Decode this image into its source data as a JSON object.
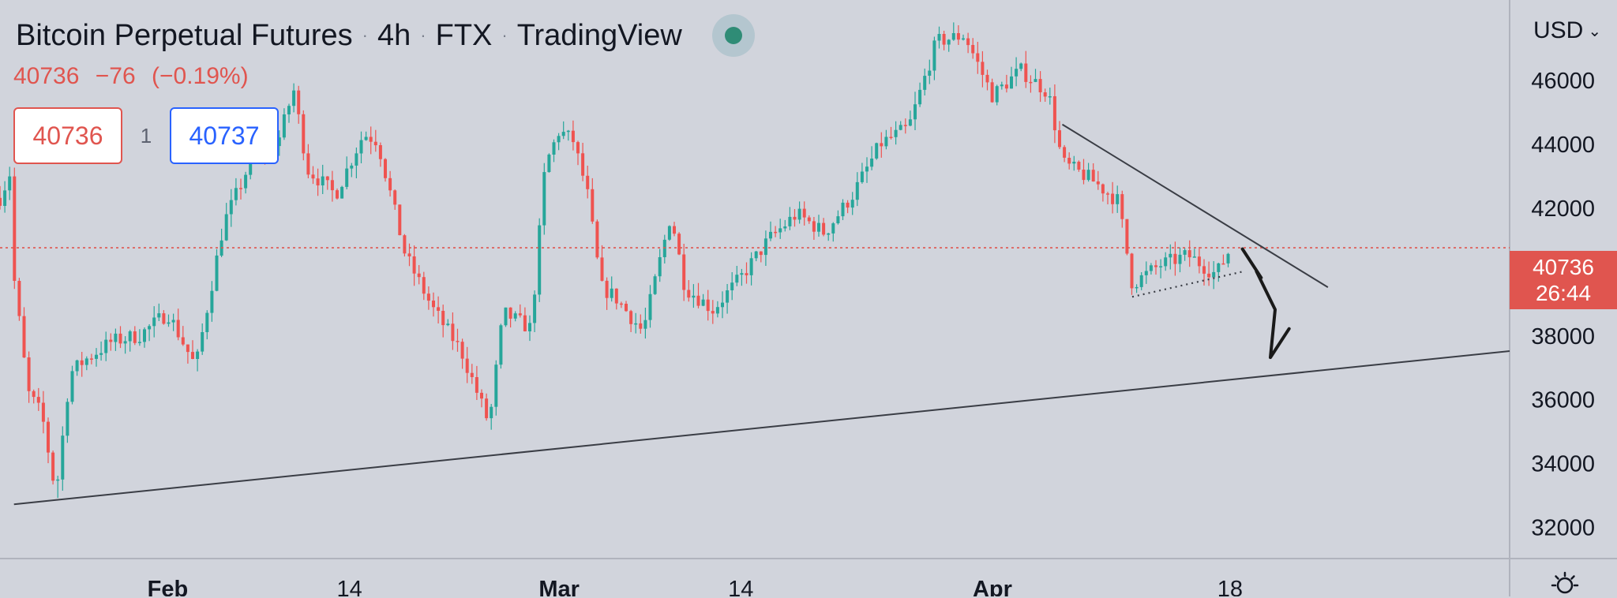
{
  "header": {
    "symbol": "Bitcoin Perpetual Futures",
    "interval": "4h",
    "exchange": "FTX",
    "source": "TradingView"
  },
  "quote": {
    "last": "40736",
    "change": "−76",
    "change_pct": "(−0.19%)",
    "sell": "40736",
    "spread": "1",
    "buy": "40737"
  },
  "currency": "USD",
  "price_label": {
    "price": "40736",
    "countdown": "26:44"
  },
  "colors": {
    "background": "#d1d4dc",
    "up": "#26a69a",
    "down": "#ef5350",
    "price_line": "#e0554f",
    "trendline": "#3a3d45",
    "drawing": "#1a1a1a"
  },
  "chart_data": {
    "type": "candlestick",
    "y_axis": {
      "ticks": [
        32000,
        34000,
        36000,
        38000,
        40000,
        42000,
        44000,
        46000
      ],
      "labels": [
        "32000",
        "34000",
        "36000",
        "38000",
        "",
        "42000",
        "44000",
        "46000"
      ],
      "range": [
        31000,
        48500
      ]
    },
    "x_axis": {
      "ticks": [
        "2022-02-01",
        "2022-02-14",
        "2022-03-01",
        "2022-03-14",
        "2022-04-01",
        "2022-04-18"
      ],
      "labels": [
        "Feb",
        "14",
        "Mar",
        "14",
        "Apr",
        "18"
      ],
      "bold": [
        true,
        false,
        true,
        false,
        true,
        false
      ],
      "range": [
        "2022-01-20",
        "2022-05-08"
      ]
    },
    "last_price": 40736,
    "path": [
      [
        "2022-01-20",
        42300
      ],
      [
        "2022-01-21",
        43400
      ],
      [
        "2022-01-21",
        39800
      ],
      [
        "2022-01-22",
        36200
      ],
      [
        "2022-01-23",
        35500
      ],
      [
        "2022-01-24",
        33000
      ],
      [
        "2022-01-25",
        36800
      ],
      [
        "2022-01-26",
        37200
      ],
      [
        "2022-01-28",
        37800
      ],
      [
        "2022-01-30",
        38000
      ],
      [
        "2022-02-01",
        38700
      ],
      [
        "2022-02-03",
        37000
      ],
      [
        "2022-02-05",
        41500
      ],
      [
        "2022-02-07",
        43500
      ],
      [
        "2022-02-09",
        44200
      ],
      [
        "2022-02-10",
        45700
      ],
      [
        "2022-02-11",
        43200
      ],
      [
        "2022-02-13",
        42400
      ],
      [
        "2022-02-15",
        44300
      ],
      [
        "2022-02-16",
        44100
      ],
      [
        "2022-02-18",
        40500
      ],
      [
        "2022-02-20",
        38800
      ],
      [
        "2022-02-22",
        37500
      ],
      [
        "2022-02-24",
        35200
      ],
      [
        "2022-02-25",
        38700
      ],
      [
        "2022-02-27",
        38200
      ],
      [
        "2022-02-28",
        43300
      ],
      [
        "2022-03-01",
        44400
      ],
      [
        "2022-03-02",
        44100
      ],
      [
        "2022-03-03",
        42500
      ],
      [
        "2022-03-04",
        39500
      ],
      [
        "2022-03-05",
        39200
      ],
      [
        "2022-03-07",
        38100
      ],
      [
        "2022-03-09",
        41800
      ],
      [
        "2022-03-10",
        39500
      ],
      [
        "2022-03-12",
        38800
      ],
      [
        "2022-03-14",
        39800
      ],
      [
        "2022-03-16",
        41000
      ],
      [
        "2022-03-18",
        41800
      ],
      [
        "2022-03-20",
        41200
      ],
      [
        "2022-03-22",
        42400
      ],
      [
        "2022-03-24",
        44000
      ],
      [
        "2022-03-26",
        44500
      ],
      [
        "2022-03-28",
        47200
      ],
      [
        "2022-03-30",
        47400
      ],
      [
        "2022-04-01",
        45500
      ],
      [
        "2022-04-03",
        46300
      ],
      [
        "2022-04-05",
        45600
      ],
      [
        "2022-04-06",
        43400
      ],
      [
        "2022-04-08",
        42900
      ],
      [
        "2022-04-10",
        42200
      ],
      [
        "2022-04-11",
        39600
      ],
      [
        "2022-04-13",
        40200
      ],
      [
        "2022-04-15",
        40500
      ],
      [
        "2022-04-17",
        39900
      ],
      [
        "2022-04-18",
        40700
      ],
      [
        "2022-04-18",
        40736
      ]
    ],
    "low_point": [
      "2022-01-24",
      32900
    ],
    "annotations": {
      "support_line": {
        "from": [
          "2022-01-21",
          32700
        ],
        "to": [
          "2022-05-08",
          37500
        ]
      },
      "resistance_line": {
        "from": [
          "2022-04-06",
          44600
        ],
        "to": [
          "2022-04-25",
          39500
        ]
      },
      "dotted_support": {
        "from": [
          "2022-04-11",
          39200
        ],
        "to": [
          "2022-04-19",
          40000
        ]
      },
      "hand_drawn_projection": [
        [
          "2022-04-19",
          40700
        ],
        [
          "2022-04-20",
          39800
        ],
        [
          "2022-04-20",
          40000
        ],
        [
          "2022-04-21",
          38800
        ],
        [
          "2022-04-21",
          37300
        ],
        [
          "2022-04-22",
          38200
        ]
      ]
    }
  }
}
